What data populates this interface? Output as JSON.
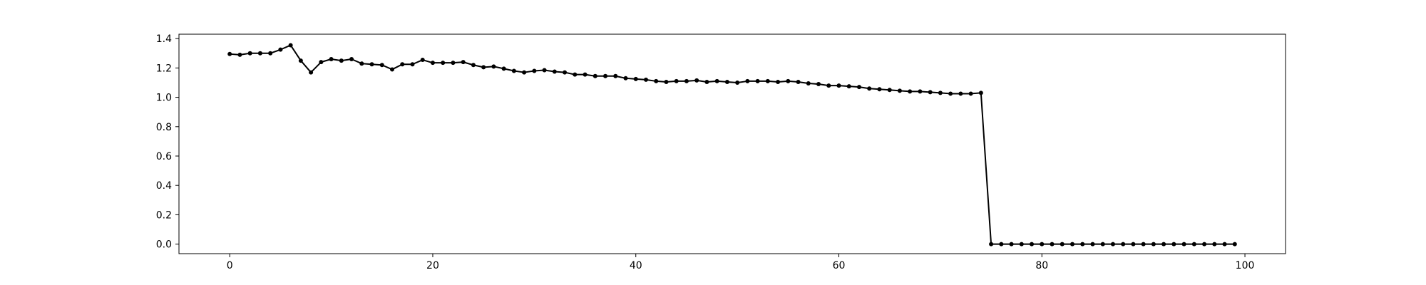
{
  "chart_data": {
    "type": "line",
    "title": "",
    "xlabel": "",
    "ylabel": "",
    "xlim": [
      -5,
      104
    ],
    "ylim": [
      -0.065,
      1.43
    ],
    "xticks": [
      0,
      20,
      40,
      60,
      80,
      100
    ],
    "xtick_labels": [
      "0",
      "20",
      "40",
      "60",
      "80",
      "100"
    ],
    "yticks": [
      0.0,
      0.2,
      0.4,
      0.6,
      0.8,
      1.0,
      1.2,
      1.4
    ],
    "ytick_labels": [
      "0.0",
      "0.2",
      "0.4",
      "0.6",
      "0.8",
      "1.0",
      "1.2",
      "1.4"
    ],
    "grid": false,
    "legend": false,
    "color": "#000000",
    "marker": "circle",
    "series": [
      {
        "x": [
          0,
          1,
          2,
          3,
          4,
          5,
          6,
          7,
          8,
          9,
          10,
          11,
          12,
          13,
          14,
          15,
          16,
          17,
          18,
          19,
          20,
          21,
          22,
          23,
          24,
          25,
          26,
          27,
          28,
          29,
          30,
          31,
          32,
          33,
          34,
          35,
          36,
          37,
          38,
          39,
          40,
          41,
          42,
          43,
          44,
          45,
          46,
          47,
          48,
          49,
          50,
          51,
          52,
          53,
          54,
          55,
          56,
          57,
          58,
          59,
          60,
          61,
          62,
          63,
          64,
          65,
          66,
          67,
          68,
          69,
          70,
          71,
          72,
          73,
          74,
          75,
          76,
          77,
          78,
          79,
          80,
          81,
          82,
          83,
          84,
          85,
          86,
          87,
          88,
          89,
          90,
          91,
          92,
          93,
          94,
          95,
          96,
          97,
          98,
          99
        ],
        "values": [
          1.295,
          1.29,
          1.3,
          1.3,
          1.3,
          1.325,
          1.355,
          1.25,
          1.17,
          1.24,
          1.26,
          1.25,
          1.26,
          1.23,
          1.225,
          1.22,
          1.19,
          1.225,
          1.225,
          1.255,
          1.235,
          1.235,
          1.235,
          1.24,
          1.22,
          1.205,
          1.21,
          1.195,
          1.18,
          1.17,
          1.18,
          1.185,
          1.175,
          1.17,
          1.155,
          1.155,
          1.145,
          1.145,
          1.145,
          1.13,
          1.125,
          1.12,
          1.11,
          1.105,
          1.11,
          1.11,
          1.115,
          1.105,
          1.11,
          1.105,
          1.1,
          1.11,
          1.11,
          1.11,
          1.105,
          1.11,
          1.105,
          1.095,
          1.09,
          1.08,
          1.08,
          1.075,
          1.07,
          1.06,
          1.055,
          1.05,
          1.045,
          1.04,
          1.04,
          1.035,
          1.03,
          1.025,
          1.025,
          1.025,
          1.03,
          0.0,
          0.0,
          0.0,
          0.0,
          0.0,
          0.0,
          0.0,
          0.0,
          0.0,
          0.0,
          0.0,
          0.0,
          0.0,
          0.0,
          0.0,
          0.0,
          0.0,
          0.0,
          0.0,
          0.0,
          0.0,
          0.0,
          0.0,
          0.0,
          0.0
        ]
      }
    ]
  }
}
